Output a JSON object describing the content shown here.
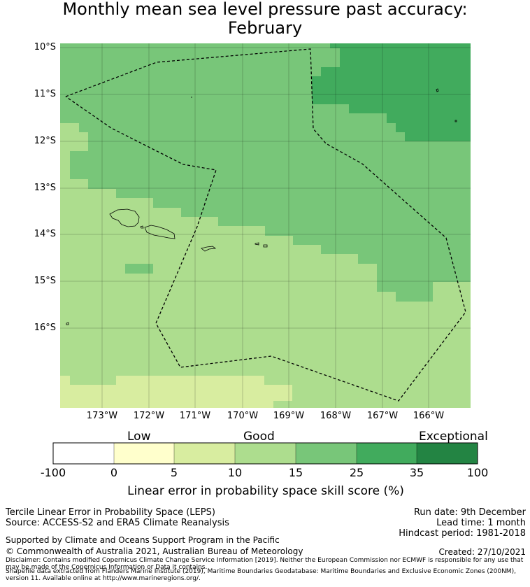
{
  "title": {
    "line1": "Monthly mean sea level pressure past accuracy:",
    "line2": "February"
  },
  "map": {
    "lat_labels": [
      "10°S",
      "11°S",
      "12°S",
      "13°S",
      "14°S",
      "15°S",
      "16°S"
    ],
    "lon_labels": [
      "173°W",
      "172°W",
      "171°W",
      "170°W",
      "169°W",
      "168°W",
      "167°W",
      "166°W"
    ],
    "layers": [
      "skill-score-grid",
      "coastlines",
      "eez-boundary",
      "graticule"
    ],
    "skill_colors": {
      "5-10": "#d8eda0",
      "10-15": "#addd8e",
      "15-25": "#78c679",
      "25-35": "#41ab5d"
    }
  },
  "colorbar": {
    "category_labels": [
      "Low",
      "Good",
      "Exceptional"
    ],
    "ticks": [
      "-100",
      "0",
      "5",
      "10",
      "15",
      "25",
      "35",
      "100"
    ],
    "colors": [
      "#ffffff",
      "#ffffcc",
      "#d8eda0",
      "#addd8e",
      "#78c679",
      "#41ab5d",
      "#238443"
    ],
    "label": "Linear error in probability space skill score (%)"
  },
  "footer": {
    "method": "Tercile Linear Error in Probability Space (LEPS)",
    "source": "Source: ACCESS-S2 and ERA5 Climate Reanalysis",
    "run_date": "Run date: 9th December",
    "lead_time": "Lead time: 1 month",
    "hindcast": "Hindcast period: 1981-2018",
    "supported": "Supported by Climate and Oceans Support Program in the Pacific",
    "copyright": "© Commonwealth of Australia 2021, Australian Bureau of Meteorology",
    "created": "Created: 27/10/2021",
    "disclaimer": "Disclaimer: Contains modified Copernicus Climate Change Service Information [2019]. Neither the European Commission nor ECMWF is responsible for any use that may be made of the Copernicus Information or Data it contains.",
    "shapefile": "Shapefile data extracted from Flanders Marine Institute (2019), Maritime Boundaries Geodatabase: Maritime Boundaries and Exclusive Economic Zones (200NM), version 11. Available online at http://www.marineregions.org/."
  }
}
